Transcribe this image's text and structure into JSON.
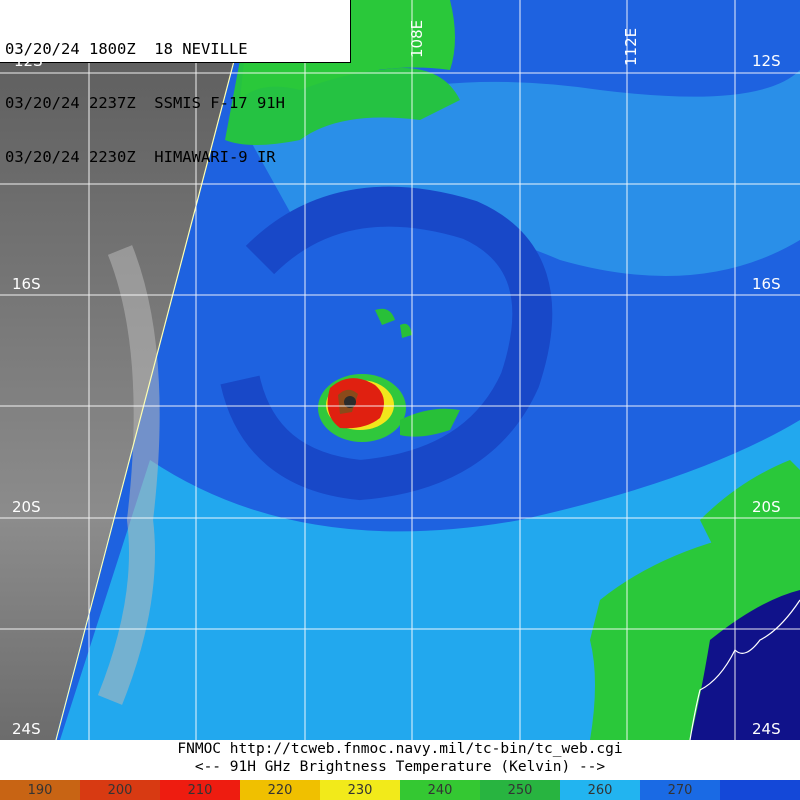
{
  "header": {
    "line1": "03/20/24 1800Z  18 NEVILLE",
    "line2": "03/20/24 2237Z  SSMIS F-17 91H",
    "line3": "03/20/24 2230Z  HIMAWARI-9 IR"
  },
  "labels": {
    "lat_12s": "12S",
    "lat_16s": "16S",
    "lat_20s": "20S",
    "lat_24s": "24S",
    "lon_108e": "108E",
    "lon_112e": "112E"
  },
  "footer": {
    "source": "FNMOC  http://tcweb.fnmoc.navy.mil/tc-bin/tc_web.cgi",
    "legend_title": "<--   91H GHz Brightness Temperature (Kelvin)  -->"
  },
  "colorbar": {
    "segments": [
      {
        "label": "190",
        "color": "#c86414"
      },
      {
        "label": "200",
        "color": "#d83a12"
      },
      {
        "label": "210",
        "color": "#ee1c10"
      },
      {
        "label": "220",
        "color": "#f0c000"
      },
      {
        "label": "230",
        "color": "#f2ea1a"
      },
      {
        "label": "240",
        "color": "#34c832"
      },
      {
        "label": "250",
        "color": "#28b440"
      },
      {
        "label": "260",
        "color": "#22b4f0"
      },
      {
        "label": "270",
        "color": "#1a6ae4"
      },
      {
        "label": "",
        "color": "#1448d8"
      }
    ]
  }
}
